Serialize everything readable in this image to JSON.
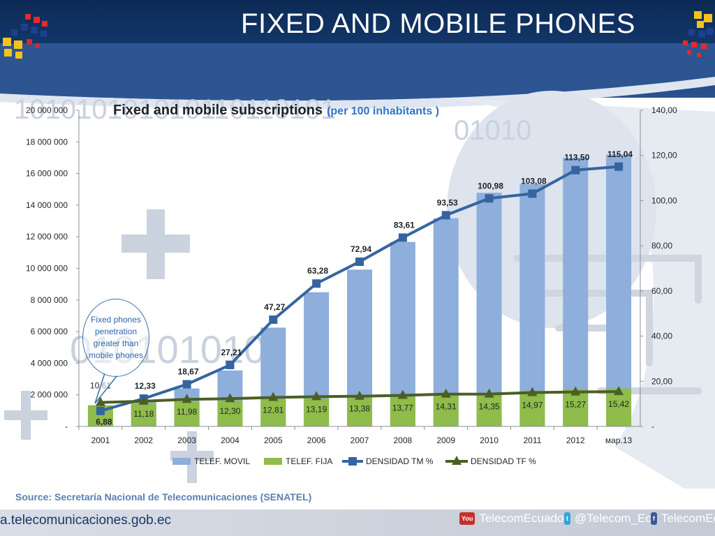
{
  "slide": {
    "title": "FIXED AND MOBILE PHONES",
    "source": "Source: Secretaría Nacional de Telecomunicaciones (SENATEL)",
    "website": "a.telecomunicaciones.gob.ec",
    "social": [
      {
        "label": "TelecomEcuador",
        "icon": "youtube-icon",
        "badge": "You"
      },
      {
        "label": "@Telecom_Ec",
        "icon": "twitter-icon",
        "badge": "t"
      },
      {
        "label": "TelecomEc",
        "icon": "facebook-icon",
        "badge": "f"
      }
    ]
  },
  "callout": {
    "text": "Fixed phones penetration greater than mobile phones"
  },
  "colors": {
    "movil_bar": "#8eaedb",
    "fija_bar": "#8fbc4a",
    "tm_line": "#3564a0",
    "tf_line": "#4b5f23",
    "title_blue": "#2e75c9"
  },
  "chart_data": {
    "type": "bar",
    "title": "Fixed and mobile subscriptions",
    "subtitle": "(per 100 inhabitants )",
    "categories": [
      "2001",
      "2002",
      "2003",
      "2004",
      "2005",
      "2006",
      "2007",
      "2008",
      "2009",
      "2010",
      "2011",
      "2012",
      "мар.13"
    ],
    "series": [
      {
        "name": "TELEF. MOVIL",
        "kind": "bar",
        "axis": "left",
        "values": [
          850000,
          1570000,
          2400000,
          3540000,
          6250000,
          8490000,
          9920000,
          11670000,
          13170000,
          14780000,
          15330000,
          17000000,
          17200000
        ]
      },
      {
        "name": "TELEF. FIJA",
        "kind": "bar",
        "axis": "left",
        "values": [
          1340000,
          1420000,
          1570000,
          1640000,
          1710000,
          1760000,
          1800000,
          1880000,
          1970000,
          2100000,
          2250000,
          2360000,
          2400000
        ]
      },
      {
        "name": "DENSIDAD TM %",
        "kind": "line",
        "axis": "right",
        "values": [
          6.88,
          12.33,
          18.67,
          27.21,
          47.27,
          63.28,
          72.94,
          83.61,
          93.53,
          100.98,
          103.08,
          113.5,
          115.04
        ],
        "labels": [
          "6,88",
          "12,33",
          "18,67",
          "27,21",
          "47,27",
          "63,28",
          "72,94",
          "83,61",
          "93,53",
          "100,98",
          "103,08",
          "113,50",
          "115,04"
        ]
      },
      {
        "name": "DENSIDAD TF %",
        "kind": "line",
        "axis": "right",
        "values": [
          10.61,
          11.18,
          11.98,
          12.3,
          12.81,
          13.19,
          13.38,
          13.77,
          14.31,
          14.35,
          14.97,
          15.27,
          15.42
        ],
        "labels": [
          "10,61",
          "11,18",
          "11,98",
          "12,30",
          "12,81",
          "13,19",
          "13,38",
          "13,77",
          "14,31",
          "14,35",
          "14,97",
          "15,27",
          "15,42"
        ]
      }
    ],
    "y_left": {
      "min": 0,
      "max": 20000000,
      "ticks": [
        "-",
        "2 000 000",
        "4 000 000",
        "6 000 000",
        "8 000 000",
        "10 000 000",
        "12 000 000",
        "14 000 000",
        "16 000 000",
        "18 000 000",
        "20 000 000"
      ]
    },
    "y_right": {
      "min": 0,
      "max": 140,
      "ticks": [
        "-",
        "20,00",
        "40,00",
        "60,00",
        "80,00",
        "100,00",
        "120,00",
        "140,00"
      ]
    },
    "legend_position": "bottom",
    "grid": false
  }
}
